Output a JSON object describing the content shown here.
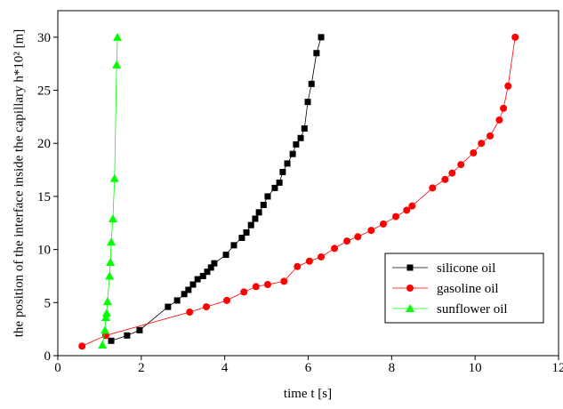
{
  "chart_data": {
    "type": "scatter-line",
    "xlabel": "time t [s]",
    "ylabel": "the position of the interface inside the capillary h*10² [m]",
    "xlim": [
      0,
      12
    ],
    "ylim": [
      0,
      32.5
    ],
    "xticks": [
      0,
      2,
      4,
      6,
      8,
      10,
      12
    ],
    "yticks": [
      0,
      5,
      10,
      15,
      20,
      25,
      30
    ],
    "legend": "lower right",
    "series": [
      {
        "name": "silicone oil",
        "color": "#000000",
        "marker": "square",
        "x": [
          1.28,
          1.66,
          1.96,
          2.64,
          2.86,
          3.03,
          3.13,
          3.24,
          3.35,
          3.48,
          3.58,
          3.67,
          3.75,
          4.03,
          4.22,
          4.41,
          4.52,
          4.63,
          4.73,
          4.82,
          4.93,
          5.03,
          5.2,
          5.31,
          5.39,
          5.5,
          5.63,
          5.71,
          5.82,
          5.91,
          5.99,
          6.08,
          6.2,
          6.31
        ],
        "values": [
          1.4,
          1.9,
          2.4,
          4.6,
          5.2,
          5.8,
          6.2,
          6.7,
          7.2,
          7.5,
          7.9,
          8.3,
          8.7,
          9.5,
          10.4,
          11.1,
          11.6,
          12.3,
          12.9,
          13.5,
          14.2,
          15.0,
          15.8,
          16.3,
          17.3,
          18.1,
          19.0,
          19.9,
          20.5,
          21.4,
          23.9,
          25.6,
          28.5,
          30.0
        ]
      },
      {
        "name": "gasoline oil",
        "color": "#ff0000",
        "marker": "circle",
        "x": [
          0.58,
          1.15,
          3.16,
          3.56,
          4.05,
          4.46,
          4.75,
          5.03,
          5.42,
          5.74,
          6.03,
          6.31,
          6.63,
          6.93,
          7.19,
          7.51,
          7.8,
          8.1,
          8.36,
          8.49,
          8.98,
          9.28,
          9.45,
          9.66,
          9.96,
          10.15,
          10.36,
          10.58,
          10.68,
          10.79,
          10.96
        ],
        "values": [
          0.9,
          1.9,
          4.1,
          4.6,
          5.2,
          6.0,
          6.5,
          6.7,
          7.0,
          8.4,
          8.9,
          9.3,
          10.1,
          10.8,
          11.2,
          11.8,
          12.4,
          13.1,
          13.7,
          14.1,
          15.8,
          16.6,
          17.2,
          18.0,
          19.1,
          20.0,
          20.7,
          22.2,
          23.3,
          25.4,
          30.0
        ]
      },
      {
        "name": "sunflower oil",
        "color": "#00ff00",
        "marker": "triangle",
        "x": [
          1.07,
          1.13,
          1.15,
          1.17,
          1.19,
          1.24,
          1.26,
          1.28,
          1.32,
          1.36,
          1.41,
          1.43
        ],
        "values": [
          1.0,
          2.4,
          3.6,
          4.0,
          5.1,
          7.5,
          8.8,
          10.7,
          12.9,
          16.7,
          27.4,
          30.0
        ]
      }
    ]
  }
}
